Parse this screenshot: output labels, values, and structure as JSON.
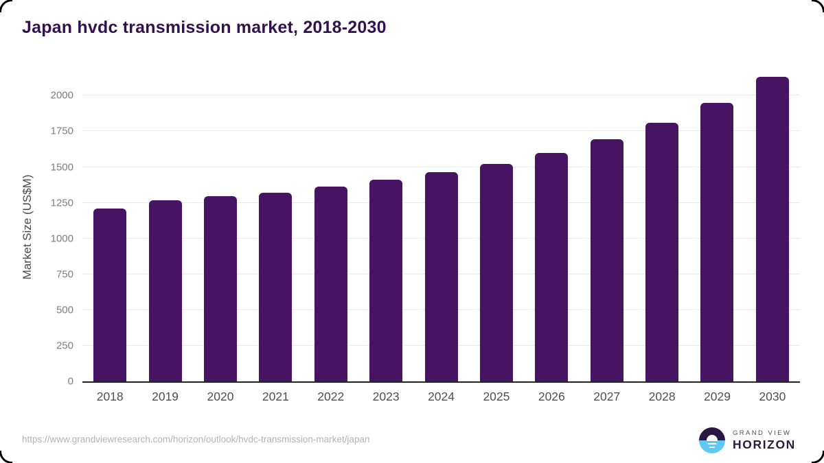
{
  "header": {
    "title": "Japan hvdc transmission market, 2018-2030"
  },
  "chart_data": {
    "type": "bar",
    "categories": [
      "2018",
      "2019",
      "2020",
      "2021",
      "2022",
      "2023",
      "2024",
      "2025",
      "2026",
      "2027",
      "2028",
      "2029",
      "2030"
    ],
    "values": [
      1210,
      1265,
      1295,
      1320,
      1365,
      1410,
      1465,
      1520,
      1600,
      1695,
      1810,
      1950,
      2130
    ],
    "title": "Japan hvdc transmission market, 2018-2030",
    "xlabel": "",
    "ylabel": "Market Size (US$M)",
    "ylim": [
      0,
      2165
    ],
    "yticks": [
      0,
      250,
      500,
      750,
      1000,
      1250,
      1500,
      1750,
      2000
    ],
    "grid": true,
    "legend": "none",
    "bar_color": "#471363"
  },
  "footer": {
    "source_url": "https://www.grandviewresearch.com/horizon/outlook/hvdc-transmission-market/japan",
    "logo": {
      "icon": "horizon-sunset-icon",
      "line1": "GRAND VIEW",
      "line2": "HORIZON"
    }
  },
  "colors": {
    "title_text": "#35104f",
    "bar": "#471363",
    "axis_line": "#222222",
    "gridline": "#e9e9e9",
    "y_tick_text": "#7d7d7d",
    "x_tick_text": "#4f4f4f",
    "url_text": "#b3b3b3",
    "logo_dark_purple": "#2b1843",
    "logo_light_blue": "#5ec8f2"
  }
}
